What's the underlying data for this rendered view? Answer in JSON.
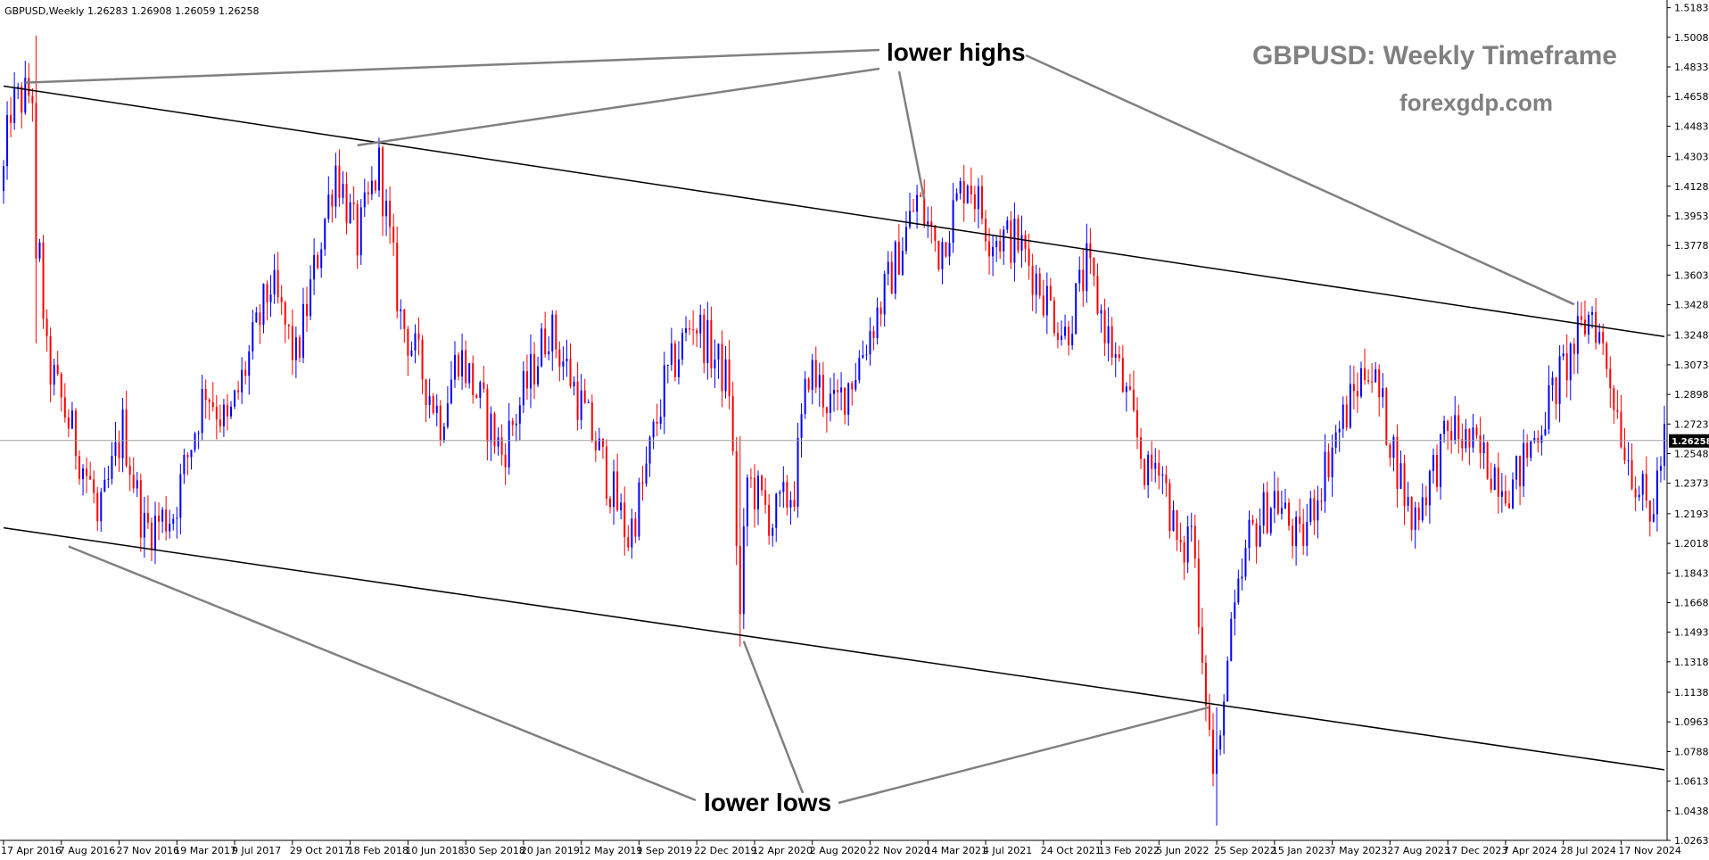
{
  "header": {
    "symbol": "GBPUSD,Weekly",
    "ohlc": "1.26283 1.26908 1.26059 1.26258"
  },
  "watermark": {
    "title": "GBPUSD: Weekly Timeframe",
    "site": "forexgdp.com"
  },
  "annotations": {
    "highs_label": "lower highs",
    "lows_label": "lower lows"
  },
  "current_price": {
    "label": "1.26258",
    "value": 1.26258
  },
  "colors": {
    "bull": "#0000ff",
    "bear": "#ff0000",
    "trendline": "#000000",
    "pointer": "#808080",
    "price_tag_bg": "#000000"
  },
  "chart_data": {
    "type": "candlestick",
    "price_axis": {
      "range": [
        1.0263,
        1.5181
      ],
      "ticks": [
        "1.51830",
        "1.50080",
        "1.48330",
        "1.46580",
        "1.44830",
        "1.43030",
        "1.41280",
        "1.39530",
        "1.37780",
        "1.36030",
        "1.34280",
        "1.32480",
        "1.30730",
        "1.28980",
        "1.27230",
        "1.25480",
        "1.23730",
        "1.21930",
        "1.20180",
        "1.18430",
        "1.16680",
        "1.14930",
        "1.13180",
        "1.11380",
        "1.09630",
        "1.07880",
        "1.06130",
        "1.04380",
        "1.02630"
      ]
    },
    "time_axis": {
      "range": [
        "2016-04-17",
        "2025-02-09"
      ],
      "ticks": [
        "17 Apr 2016",
        "7 Aug 2016",
        "27 Nov 2016",
        "19 Mar 2017",
        "9 Jul 2017",
        "29 Oct 2017",
        "18 Feb 2018",
        "10 Jun 2018",
        "30 Sep 2018",
        "20 Jan 2019",
        "12 May 2019",
        "1 Sep 2019",
        "22 Dec 2019",
        "12 Apr 2020",
        "2 Aug 2020",
        "22 Nov 2020",
        "14 Mar 2021",
        "4 Jul 2021",
        "24 Oct 2021",
        "13 Feb 2022",
        "5 Jun 2022",
        "25 Sep 2022",
        "15 Jan 2023",
        "7 May 2023",
        "27 Aug 2023",
        "17 Dec 2023",
        "7 Apr 2024",
        "28 Jul 2024",
        "17 Nov 2024"
      ]
    },
    "anchors": [
      {
        "date": "2016-04-17",
        "close": 1.42
      },
      {
        "date": "2016-05-01",
        "close": 1.46
      },
      {
        "date": "2016-06-19",
        "close": 1.47
      },
      {
        "date": "2016-06-26",
        "close": 1.37
      },
      {
        "date": "2016-07-10",
        "close": 1.31
      },
      {
        "date": "2016-10-09",
        "close": 1.23
      },
      {
        "date": "2016-10-16",
        "close": 1.21
      },
      {
        "date": "2016-12-04",
        "close": 1.27
      },
      {
        "date": "2017-01-15",
        "close": 1.21
      },
      {
        "date": "2017-03-12",
        "close": 1.22
      },
      {
        "date": "2017-05-14",
        "close": 1.295
      },
      {
        "date": "2017-06-25",
        "close": 1.27
      },
      {
        "date": "2017-09-17",
        "close": 1.355
      },
      {
        "date": "2017-11-05",
        "close": 1.31
      },
      {
        "date": "2018-01-21",
        "close": 1.425
      },
      {
        "date": "2018-03-04",
        "close": 1.38
      },
      {
        "date": "2018-04-15",
        "close": 1.425
      },
      {
        "date": "2018-05-27",
        "close": 1.335
      },
      {
        "date": "2018-08-12",
        "close": 1.275
      },
      {
        "date": "2018-09-16",
        "close": 1.315
      },
      {
        "date": "2018-12-09",
        "close": 1.255
      },
      {
        "date": "2019-03-10",
        "close": 1.33
      },
      {
        "date": "2019-04-21",
        "close": 1.3
      },
      {
        "date": "2019-06-16",
        "close": 1.255
      },
      {
        "date": "2019-08-11",
        "close": 1.205
      },
      {
        "date": "2019-09-08",
        "close": 1.235
      },
      {
        "date": "2019-10-20",
        "close": 1.295
      },
      {
        "date": "2019-12-15",
        "close": 1.335
      },
      {
        "date": "2020-02-23",
        "close": 1.295
      },
      {
        "date": "2020-03-15",
        "close": 1.16
      },
      {
        "date": "2020-03-29",
        "close": 1.24
      },
      {
        "date": "2020-05-17",
        "close": 1.215
      },
      {
        "date": "2020-06-28",
        "close": 1.235
      },
      {
        "date": "2020-07-26",
        "close": 1.305
      },
      {
        "date": "2020-09-13",
        "close": 1.28
      },
      {
        "date": "2020-10-25",
        "close": 1.305
      },
      {
        "date": "2020-12-27",
        "close": 1.355
      },
      {
        "date": "2021-02-21",
        "close": 1.405
      },
      {
        "date": "2021-04-04",
        "close": 1.375
      },
      {
        "date": "2021-05-30",
        "close": 1.42
      },
      {
        "date": "2021-07-11",
        "close": 1.385
      },
      {
        "date": "2021-09-05",
        "close": 1.38
      },
      {
        "date": "2021-12-05",
        "close": 1.325
      },
      {
        "date": "2022-01-16",
        "close": 1.365
      },
      {
        "date": "2022-03-13",
        "close": 1.31
      },
      {
        "date": "2022-05-15",
        "close": 1.24
      },
      {
        "date": "2022-06-05",
        "close": 1.255
      },
      {
        "date": "2022-07-17",
        "close": 1.19
      },
      {
        "date": "2022-08-07",
        "close": 1.215
      },
      {
        "date": "2022-09-25",
        "close": 1.04
      },
      {
        "date": "2022-10-09",
        "close": 1.12
      },
      {
        "date": "2022-11-27",
        "close": 1.205
      },
      {
        "date": "2023-01-15",
        "close": 1.23
      },
      {
        "date": "2023-03-05",
        "close": 1.2
      },
      {
        "date": "2023-05-07",
        "close": 1.26
      },
      {
        "date": "2023-07-16",
        "close": 1.31
      },
      {
        "date": "2023-08-27",
        "close": 1.265
      },
      {
        "date": "2023-10-08",
        "close": 1.215
      },
      {
        "date": "2023-12-24",
        "close": 1.27
      },
      {
        "date": "2024-04-21",
        "close": 1.235
      },
      {
        "date": "2024-07-14",
        "close": 1.295
      },
      {
        "date": "2024-09-22",
        "close": 1.34
      },
      {
        "date": "2024-10-27",
        "close": 1.3
      },
      {
        "date": "2024-11-24",
        "close": 1.26
      },
      {
        "date": "2025-01-12",
        "close": 1.215
      },
      {
        "date": "2025-02-09",
        "close": 1.2625
      }
    ],
    "trendlines": [
      {
        "name": "upper",
        "from": {
          "date": "2016-04-17",
          "price": 1.472
        },
        "to": {
          "date": "2025-02-09",
          "price": 1.324
        }
      },
      {
        "name": "lower",
        "from": {
          "date": "2016-04-17",
          "price": 1.211
        },
        "to": {
          "date": "2025-02-09",
          "price": 1.068
        }
      }
    ],
    "pointers": [
      {
        "label": "lower highs",
        "to": {
          "date": "2016-05-29",
          "price": 1.474
        }
      },
      {
        "label": "lower highs",
        "to": {
          "date": "2018-03-04",
          "price": 1.437
        }
      },
      {
        "label": "lower highs",
        "to": {
          "date": "2021-03-07",
          "price": 1.405
        }
      },
      {
        "label": "lower highs",
        "to": {
          "date": "2024-08-18",
          "price": 1.343
        }
      },
      {
        "label": "lower lows",
        "to": {
          "date": "2016-08-21",
          "price": 1.2
        }
      },
      {
        "label": "lower lows",
        "to": {
          "date": "2020-03-22",
          "price": 1.144
        }
      },
      {
        "label": "lower lows",
        "to": {
          "date": "2022-09-11",
          "price": 1.105
        }
      }
    ]
  }
}
